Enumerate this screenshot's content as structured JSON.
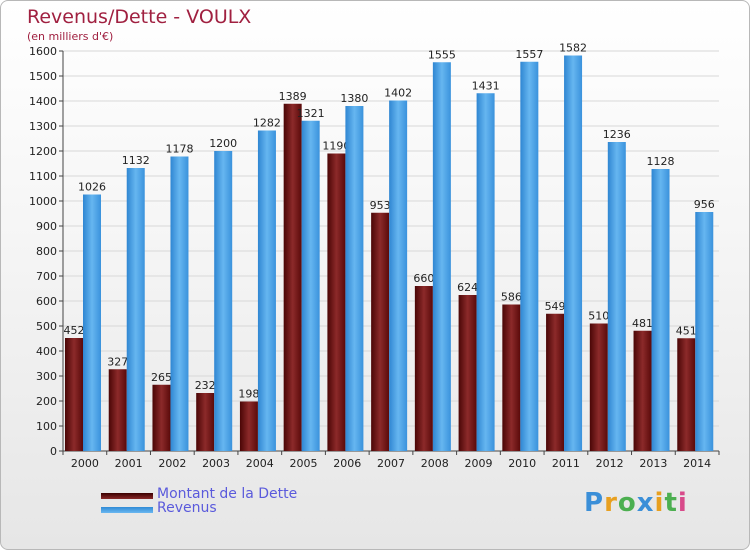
{
  "chart_data": {
    "type": "bar",
    "title": "Revenus/Dette - VOULX",
    "subtitle": "(en milliers d'€)",
    "categories": [
      "2000",
      "2001",
      "2002",
      "2003",
      "2004",
      "2005",
      "2006",
      "2007",
      "2008",
      "2009",
      "2010",
      "2011",
      "2012",
      "2013",
      "2014"
    ],
    "series": [
      {
        "name": "Montant de la Dette",
        "color": "#7a1a1a",
        "values": [
          452,
          327,
          265,
          232,
          198,
          1389,
          1190,
          953,
          660,
          624,
          586,
          549,
          510,
          481,
          451
        ]
      },
      {
        "name": "Revenus",
        "color": "#4aa3e6",
        "values": [
          1026,
          1132,
          1178,
          1200,
          1282,
          1321,
          1380,
          1402,
          1555,
          1431,
          1557,
          1582,
          1236,
          1128,
          956
        ]
      }
    ],
    "y_ticks": [
      0,
      100,
      200,
      300,
      400,
      500,
      600,
      700,
      800,
      900,
      1000,
      1100,
      1200,
      1300,
      1400,
      1500,
      1600
    ],
    "ylim": [
      0,
      1600
    ],
    "grid": true,
    "legend_position": "bottom-left"
  },
  "legend": {
    "debt_label": "Montant de la Dette",
    "revenue_label": "Revenus"
  },
  "logo": {
    "text": "Proxiti"
  }
}
